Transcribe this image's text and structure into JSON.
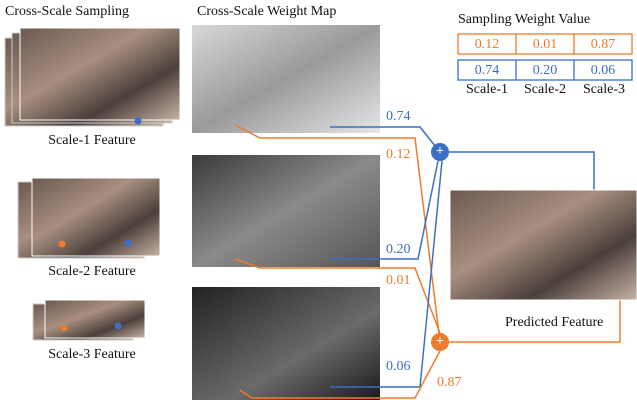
{
  "headers": {
    "sampling": "Cross-Scale Sampling",
    "weight_map": "Cross-Scale Weight Map"
  },
  "table": {
    "title": "Sampling Weight Value",
    "rows": [
      [
        "0.12",
        "0.01",
        "0.87"
      ],
      [
        "0.74",
        "0.20",
        "0.06"
      ]
    ],
    "columns": [
      "Scale-1",
      "Scale-2",
      "Scale-3"
    ]
  },
  "features": [
    "Scale-1 Feature",
    "Scale-2 Feature",
    "Scale-3 Feature"
  ],
  "weights": {
    "scale1_blue": "0.74",
    "scale1_orange": "0.12",
    "scale2_blue": "0.20",
    "scale2_orange": "0.01",
    "scale3_blue": "0.06",
    "scale3_orange": "0.87"
  },
  "output": "Predicted Feature"
}
